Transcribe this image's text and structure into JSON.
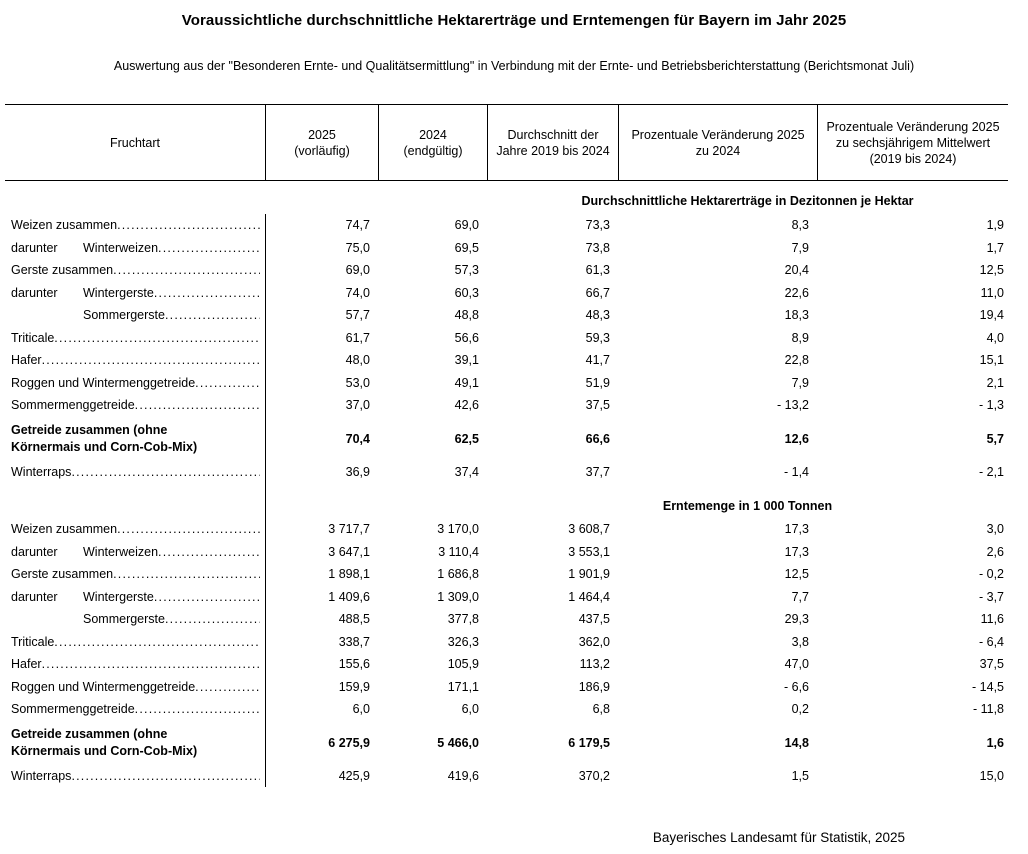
{
  "title": "Voraussichtliche durchschnittliche Hektarerträge und Erntemengen für Bayern im Jahr 2025",
  "subtitle": "Auswertung aus der \"Besonderen Ernte- und Qualitätsermittlung\" in Verbindung mit der Ernte- und Betriebsberichterstattung (Berichtsmonat Juli)",
  "table": {
    "columns": [
      "Fruchtart",
      "2025\n(vorläufig)",
      "2024\n(endgültig)",
      "Durchschnitt der Jahre 2019 bis 2024",
      "Prozentuale Veränderung 2025 zu 2024",
      "Prozentuale Veränderung 2025 zu sechsjährigem Mittelwert (2019 bis 2024)"
    ],
    "sections": [
      {
        "header": "Durchschnittliche Hektarerträge in Dezitonnen je Hektar",
        "rows": [
          {
            "prefix": "",
            "label": "Weizen zusammen",
            "indent": false,
            "bold": false,
            "leader": true,
            "values": [
              "74,7",
              "69,0",
              "73,3",
              "8,3",
              "1,9"
            ]
          },
          {
            "prefix": "darunter",
            "label": "Winterweizen",
            "indent": true,
            "bold": false,
            "leader": true,
            "values": [
              "75,0",
              "69,5",
              "73,8",
              "7,9",
              "1,7"
            ]
          },
          {
            "prefix": "",
            "label": "Gerste zusammen",
            "indent": false,
            "bold": false,
            "leader": true,
            "values": [
              "69,0",
              "57,3",
              "61,3",
              "20,4",
              "12,5"
            ]
          },
          {
            "prefix": "darunter",
            "label": "Wintergerste",
            "indent": true,
            "bold": false,
            "leader": true,
            "values": [
              "74,0",
              "60,3",
              "66,7",
              "22,6",
              "11,0"
            ]
          },
          {
            "prefix": "",
            "label": "Sommergerste",
            "indent": true,
            "bold": false,
            "leader": true,
            "values": [
              "57,7",
              "48,8",
              "48,3",
              "18,3",
              "19,4"
            ]
          },
          {
            "prefix": "",
            "label": "Triticale",
            "indent": false,
            "bold": false,
            "leader": true,
            "values": [
              "61,7",
              "56,6",
              "59,3",
              "8,9",
              "4,0"
            ]
          },
          {
            "prefix": "",
            "label": "Hafer",
            "indent": false,
            "bold": false,
            "leader": true,
            "values": [
              "48,0",
              "39,1",
              "41,7",
              "22,8",
              "15,1"
            ]
          },
          {
            "prefix": "",
            "label": "Roggen und Wintermenggetreide",
            "indent": false,
            "bold": false,
            "leader": true,
            "values": [
              "53,0",
              "49,1",
              "51,9",
              "7,9",
              "2,1"
            ]
          },
          {
            "prefix": "",
            "label": "Sommermenggetreide",
            "indent": false,
            "bold": false,
            "leader": true,
            "values": [
              "37,0",
              "42,6",
              "37,5",
              "- 13,2",
              "- 1,3"
            ]
          },
          {
            "prefix": "",
            "label": "Getreide zusammen (ohne\nKörnermais und Corn-Cob-Mix)",
            "indent": false,
            "bold": true,
            "leader": false,
            "values": [
              "70,4",
              "62,5",
              "66,6",
              "12,6",
              "5,7"
            ]
          },
          {
            "prefix": "",
            "label": "Winterraps",
            "indent": false,
            "bold": false,
            "leader": true,
            "values": [
              "36,9",
              "37,4",
              "37,7",
              "- 1,4",
              "- 2,1"
            ]
          }
        ]
      },
      {
        "header": "Erntemenge in 1 000 Tonnen",
        "rows": [
          {
            "prefix": "",
            "label": "Weizen zusammen",
            "indent": false,
            "bold": false,
            "leader": true,
            "values": [
              "3 717,7",
              "3 170,0",
              "3 608,7",
              "17,3",
              "3,0"
            ]
          },
          {
            "prefix": "darunter",
            "label": "Winterweizen",
            "indent": true,
            "bold": false,
            "leader": true,
            "values": [
              "3 647,1",
              "3 110,4",
              "3 553,1",
              "17,3",
              "2,6"
            ]
          },
          {
            "prefix": "",
            "label": "Gerste zusammen",
            "indent": false,
            "bold": false,
            "leader": true,
            "values": [
              "1 898,1",
              "1 686,8",
              "1 901,9",
              "12,5",
              "- 0,2"
            ]
          },
          {
            "prefix": "darunter",
            "label": "Wintergerste",
            "indent": true,
            "bold": false,
            "leader": true,
            "values": [
              "1 409,6",
              "1 309,0",
              "1 464,4",
              "7,7",
              "- 3,7"
            ]
          },
          {
            "prefix": "",
            "label": "Sommergerste",
            "indent": true,
            "bold": false,
            "leader": true,
            "values": [
              "488,5",
              "377,8",
              "437,5",
              "29,3",
              "11,6"
            ]
          },
          {
            "prefix": "",
            "label": "Triticale",
            "indent": false,
            "bold": false,
            "leader": true,
            "values": [
              "338,7",
              "326,3",
              "362,0",
              "3,8",
              "- 6,4"
            ]
          },
          {
            "prefix": "",
            "label": "Hafer",
            "indent": false,
            "bold": false,
            "leader": true,
            "values": [
              "155,6",
              "105,9",
              "113,2",
              "47,0",
              "37,5"
            ]
          },
          {
            "prefix": "",
            "label": "Roggen und Wintermenggetreide",
            "indent": false,
            "bold": false,
            "leader": true,
            "values": [
              "159,9",
              "171,1",
              "186,9",
              "- 6,6",
              "- 14,5"
            ]
          },
          {
            "prefix": "",
            "label": "Sommermenggetreide",
            "indent": false,
            "bold": false,
            "leader": true,
            "values": [
              "6,0",
              "6,0",
              "6,8",
              "0,2",
              "- 11,8"
            ]
          },
          {
            "prefix": "",
            "label": "Getreide zusammen (ohne\nKörnermais und Corn-Cob-Mix)",
            "indent": false,
            "bold": true,
            "leader": false,
            "values": [
              "6 275,9",
              "5 466,0",
              "6 179,5",
              "14,8",
              "1,6"
            ]
          },
          {
            "prefix": "",
            "label": "Winterraps",
            "indent": false,
            "bold": false,
            "leader": true,
            "values": [
              "425,9",
              "419,6",
              "370,2",
              "1,5",
              "15,0"
            ]
          }
        ]
      }
    ]
  },
  "footer": "Bayerisches Landesamt für Statistik, 2025"
}
